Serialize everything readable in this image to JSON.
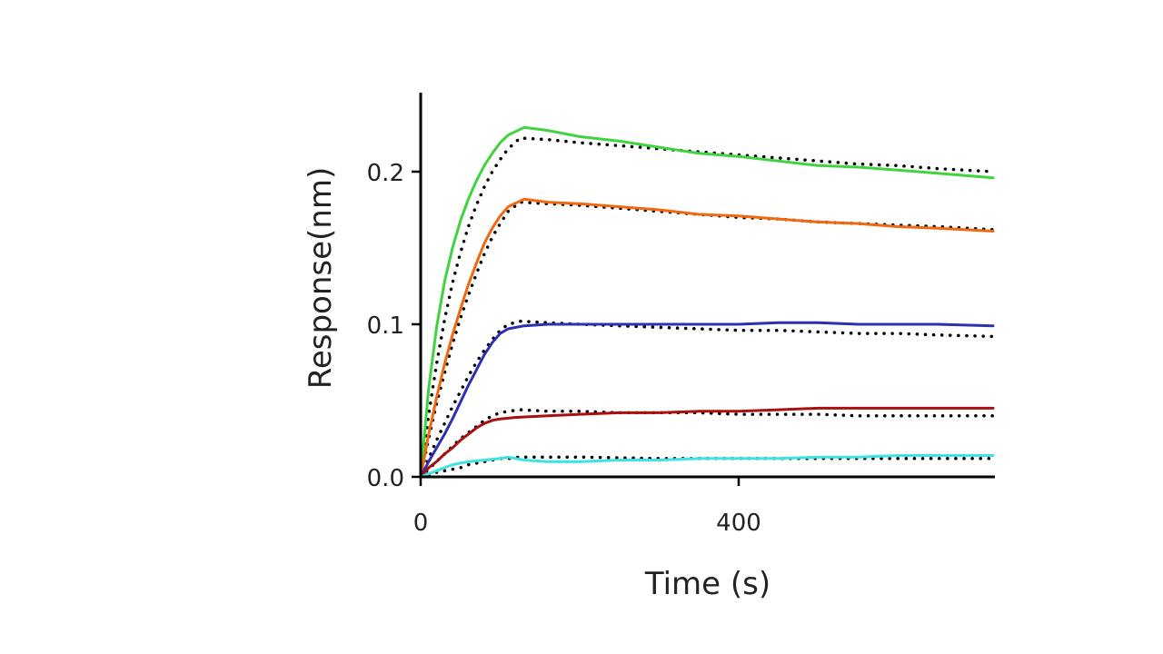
{
  "chart_data": {
    "type": "line",
    "title": "",
    "xlabel": "Time (s)",
    "ylabel": "Response(nm)",
    "xlim": [
      0,
      720
    ],
    "ylim": [
      0,
      0.25
    ],
    "x_ticks": [
      0,
      400
    ],
    "x_tick_labels": [
      "0",
      "400"
    ],
    "y_ticks": [
      0.0,
      0.1,
      0.2
    ],
    "y_tick_labels": [
      "0.0",
      "0.1",
      "0.2"
    ],
    "grid": false,
    "legend": "none",
    "series": [
      {
        "color": "#3fd43f",
        "style": "solid",
        "points": [
          [
            0,
            0
          ],
          [
            10,
            0.058
          ],
          [
            20,
            0.098
          ],
          [
            30,
            0.128
          ],
          [
            40,
            0.15
          ],
          [
            50,
            0.168
          ],
          [
            60,
            0.182
          ],
          [
            70,
            0.194
          ],
          [
            80,
            0.204
          ],
          [
            90,
            0.212
          ],
          [
            100,
            0.219
          ],
          [
            110,
            0.224
          ],
          [
            130,
            0.229
          ],
          [
            160,
            0.227
          ],
          [
            200,
            0.223
          ],
          [
            250,
            0.22
          ],
          [
            300,
            0.216
          ],
          [
            350,
            0.212
          ],
          [
            400,
            0.21
          ],
          [
            450,
            0.207
          ],
          [
            500,
            0.204
          ],
          [
            550,
            0.203
          ],
          [
            600,
            0.201
          ],
          [
            650,
            0.199
          ],
          [
            720,
            0.196
          ]
        ]
      },
      {
        "color": "#f0680f",
        "style": "solid",
        "points": [
          [
            0,
            0
          ],
          [
            10,
            0.028
          ],
          [
            20,
            0.052
          ],
          [
            30,
            0.074
          ],
          [
            40,
            0.093
          ],
          [
            50,
            0.11
          ],
          [
            60,
            0.126
          ],
          [
            70,
            0.14
          ],
          [
            80,
            0.153
          ],
          [
            90,
            0.163
          ],
          [
            100,
            0.171
          ],
          [
            110,
            0.177
          ],
          [
            130,
            0.182
          ],
          [
            160,
            0.18
          ],
          [
            200,
            0.179
          ],
          [
            250,
            0.177
          ],
          [
            300,
            0.175
          ],
          [
            350,
            0.172
          ],
          [
            400,
            0.171
          ],
          [
            450,
            0.169
          ],
          [
            500,
            0.167
          ],
          [
            550,
            0.166
          ],
          [
            600,
            0.164
          ],
          [
            650,
            0.163
          ],
          [
            720,
            0.161
          ]
        ]
      },
      {
        "color": "#2f2fb4",
        "style": "solid",
        "points": [
          [
            0,
            0
          ],
          [
            10,
            0.01
          ],
          [
            20,
            0.019
          ],
          [
            30,
            0.028
          ],
          [
            40,
            0.038
          ],
          [
            50,
            0.049
          ],
          [
            60,
            0.06
          ],
          [
            70,
            0.07
          ],
          [
            80,
            0.08
          ],
          [
            90,
            0.088
          ],
          [
            100,
            0.094
          ],
          [
            110,
            0.097
          ],
          [
            130,
            0.099
          ],
          [
            160,
            0.1
          ],
          [
            200,
            0.1
          ],
          [
            250,
            0.1
          ],
          [
            300,
            0.1
          ],
          [
            350,
            0.1
          ],
          [
            400,
            0.1
          ],
          [
            450,
            0.101
          ],
          [
            500,
            0.101
          ],
          [
            550,
            0.1
          ],
          [
            600,
            0.1
          ],
          [
            650,
            0.1
          ],
          [
            720,
            0.099
          ]
        ]
      },
      {
        "color": "#aa0f0f",
        "style": "solid",
        "points": [
          [
            0,
            0
          ],
          [
            10,
            0.006
          ],
          [
            20,
            0.01
          ],
          [
            30,
            0.015
          ],
          [
            40,
            0.019
          ],
          [
            50,
            0.024
          ],
          [
            60,
            0.028
          ],
          [
            70,
            0.032
          ],
          [
            80,
            0.035
          ],
          [
            90,
            0.037
          ],
          [
            100,
            0.038
          ],
          [
            120,
            0.039
          ],
          [
            160,
            0.04
          ],
          [
            200,
            0.041
          ],
          [
            250,
            0.042
          ],
          [
            300,
            0.042
          ],
          [
            350,
            0.043
          ],
          [
            400,
            0.043
          ],
          [
            450,
            0.044
          ],
          [
            500,
            0.045
          ],
          [
            550,
            0.045
          ],
          [
            600,
            0.045
          ],
          [
            650,
            0.045
          ],
          [
            720,
            0.045
          ]
        ]
      },
      {
        "color": "#3de3e3",
        "style": "solid",
        "points": [
          [
            0,
            0
          ],
          [
            10,
            0.002
          ],
          [
            20,
            0.004
          ],
          [
            30,
            0.006
          ],
          [
            40,
            0.008
          ],
          [
            50,
            0.009
          ],
          [
            60,
            0.01
          ],
          [
            80,
            0.011
          ],
          [
            100,
            0.012
          ],
          [
            110,
            0.013
          ],
          [
            130,
            0.011
          ],
          [
            160,
            0.01
          ],
          [
            200,
            0.01
          ],
          [
            250,
            0.011
          ],
          [
            300,
            0.011
          ],
          [
            350,
            0.012
          ],
          [
            400,
            0.012
          ],
          [
            450,
            0.012
          ],
          [
            500,
            0.013
          ],
          [
            550,
            0.013
          ],
          [
            600,
            0.014
          ],
          [
            650,
            0.014
          ],
          [
            720,
            0.014
          ]
        ]
      },
      {
        "color": "#000000",
        "style": "dotted",
        "points": [
          [
            0,
            0
          ],
          [
            10,
            0.041
          ],
          [
            20,
            0.074
          ],
          [
            30,
            0.103
          ],
          [
            40,
            0.127
          ],
          [
            50,
            0.147
          ],
          [
            60,
            0.164
          ],
          [
            70,
            0.178
          ],
          [
            80,
            0.19
          ],
          [
            90,
            0.2
          ],
          [
            100,
            0.208
          ],
          [
            110,
            0.215
          ],
          [
            125,
            0.222
          ],
          [
            160,
            0.221
          ],
          [
            200,
            0.219
          ],
          [
            250,
            0.217
          ],
          [
            300,
            0.215
          ],
          [
            350,
            0.213
          ],
          [
            400,
            0.211
          ],
          [
            450,
            0.209
          ],
          [
            500,
            0.207
          ],
          [
            550,
            0.205
          ],
          [
            600,
            0.204
          ],
          [
            650,
            0.202
          ],
          [
            720,
            0.2
          ]
        ]
      },
      {
        "color": "#000000",
        "style": "dotted",
        "points": [
          [
            0,
            0
          ],
          [
            10,
            0.025
          ],
          [
            20,
            0.048
          ],
          [
            30,
            0.068
          ],
          [
            40,
            0.087
          ],
          [
            50,
            0.104
          ],
          [
            60,
            0.119
          ],
          [
            70,
            0.133
          ],
          [
            80,
            0.146
          ],
          [
            90,
            0.157
          ],
          [
            100,
            0.166
          ],
          [
            110,
            0.174
          ],
          [
            125,
            0.18
          ],
          [
            160,
            0.179
          ],
          [
            200,
            0.178
          ],
          [
            250,
            0.176
          ],
          [
            300,
            0.174
          ],
          [
            350,
            0.172
          ],
          [
            400,
            0.17
          ],
          [
            450,
            0.169
          ],
          [
            500,
            0.167
          ],
          [
            550,
            0.166
          ],
          [
            600,
            0.165
          ],
          [
            650,
            0.164
          ],
          [
            720,
            0.162
          ]
        ]
      },
      {
        "color": "#000000",
        "style": "dotted",
        "points": [
          [
            0,
            0
          ],
          [
            10,
            0.012
          ],
          [
            20,
            0.024
          ],
          [
            30,
            0.035
          ],
          [
            40,
            0.046
          ],
          [
            50,
            0.056
          ],
          [
            60,
            0.066
          ],
          [
            70,
            0.075
          ],
          [
            80,
            0.083
          ],
          [
            90,
            0.09
          ],
          [
            100,
            0.096
          ],
          [
            110,
            0.1
          ],
          [
            125,
            0.102
          ],
          [
            160,
            0.101
          ],
          [
            200,
            0.1
          ],
          [
            250,
            0.099
          ],
          [
            300,
            0.098
          ],
          [
            350,
            0.097
          ],
          [
            400,
            0.096
          ],
          [
            450,
            0.096
          ],
          [
            500,
            0.095
          ],
          [
            550,
            0.094
          ],
          [
            600,
            0.094
          ],
          [
            650,
            0.093
          ],
          [
            720,
            0.092
          ]
        ]
      },
      {
        "color": "#000000",
        "style": "dotted",
        "points": [
          [
            0,
            0
          ],
          [
            10,
            0.005
          ],
          [
            20,
            0.01
          ],
          [
            30,
            0.015
          ],
          [
            40,
            0.02
          ],
          [
            50,
            0.025
          ],
          [
            60,
            0.029
          ],
          [
            70,
            0.033
          ],
          [
            80,
            0.037
          ],
          [
            90,
            0.04
          ],
          [
            100,
            0.042
          ],
          [
            110,
            0.043
          ],
          [
            125,
            0.044
          ],
          [
            160,
            0.043
          ],
          [
            200,
            0.043
          ],
          [
            250,
            0.042
          ],
          [
            300,
            0.042
          ],
          [
            350,
            0.042
          ],
          [
            400,
            0.041
          ],
          [
            450,
            0.041
          ],
          [
            500,
            0.041
          ],
          [
            550,
            0.04
          ],
          [
            600,
            0.04
          ],
          [
            650,
            0.04
          ],
          [
            720,
            0.04
          ]
        ]
      },
      {
        "color": "#000000",
        "style": "dotted",
        "points": [
          [
            0,
            0
          ],
          [
            10,
            0.001
          ],
          [
            20,
            0.003
          ],
          [
            30,
            0.004
          ],
          [
            40,
            0.005
          ],
          [
            50,
            0.006
          ],
          [
            60,
            0.008
          ],
          [
            70,
            0.009
          ],
          [
            80,
            0.01
          ],
          [
            90,
            0.011
          ],
          [
            100,
            0.012
          ],
          [
            110,
            0.012
          ],
          [
            125,
            0.013
          ],
          [
            200,
            0.013
          ],
          [
            300,
            0.012
          ],
          [
            400,
            0.012
          ],
          [
            500,
            0.012
          ],
          [
            600,
            0.012
          ],
          [
            720,
            0.012
          ]
        ]
      }
    ]
  }
}
